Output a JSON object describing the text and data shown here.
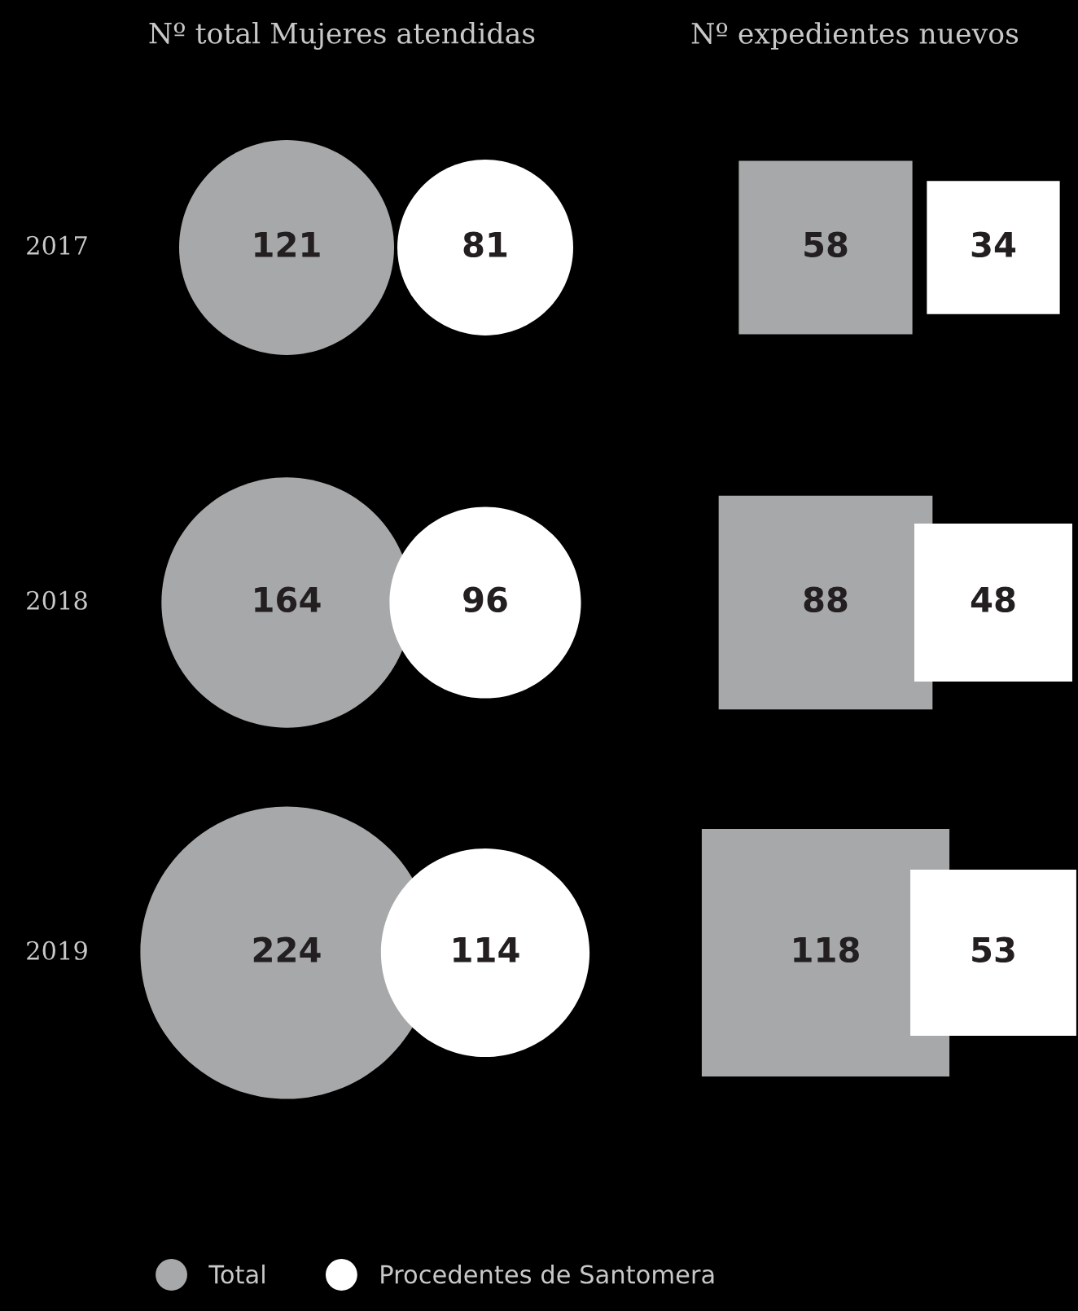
{
  "chart_data": {
    "type": "other",
    "title": "Nº total Mujeres atendidas",
    "annotations": [
      "Nº expedientes nuevos"
    ],
    "categories": [
      "2017",
      "2018",
      "2019"
    ],
    "data_labels": true,
    "legend": "bottom",
    "series": [
      {
        "name": "Total",
        "color": "#a7a8aa",
        "values": [
          121,
          164,
          224
        ]
      },
      {
        "name": "Procedentes de Santomera",
        "color": "#ffffff",
        "values": [
          81,
          96,
          114
        ]
      },
      {
        "color": "#a7a8aa",
        "values": [
          58,
          88,
          118
        ]
      },
      {
        "color": "#ffffff",
        "values": [
          34,
          48,
          53
        ]
      }
    ]
  }
}
